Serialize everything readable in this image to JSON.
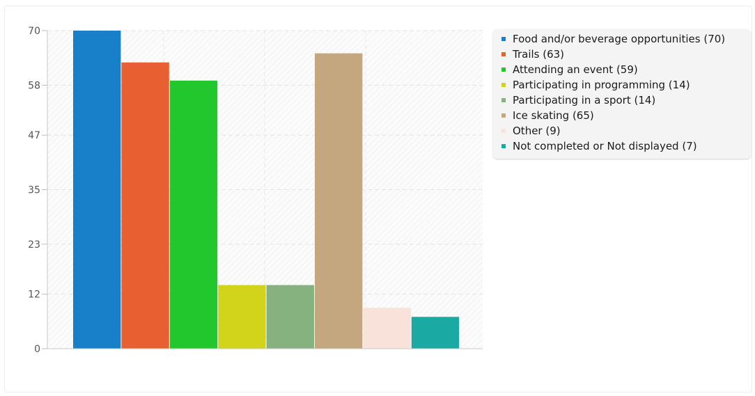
{
  "chart_data": {
    "type": "bar",
    "categories": [
      "Food and/or beverage opportunities",
      "Trails",
      "Attending an event",
      "Participating in programming",
      "Participating in a sport",
      "Ice skating",
      "Other",
      "Not completed or Not displayed"
    ],
    "values": [
      70,
      63,
      59,
      14,
      14,
      65,
      9,
      7
    ],
    "colors": [
      "#1780c9",
      "#e85f31",
      "#22c72e",
      "#d2d41c",
      "#86b27f",
      "#c5a77f",
      "#f9e2da",
      "#1aa9a3"
    ],
    "ylim": [
      0,
      70
    ],
    "yticks": [
      "0",
      "12",
      "23",
      "35",
      "47",
      "58",
      "70"
    ],
    "grid": true,
    "legend_position": "right",
    "legend": [
      "Food and/or beverage opportunities (70)",
      "Trails (63)",
      "Attending an event (59)",
      "Participating in programming (14)",
      "Participating in a sport (14)",
      "Ice skating (65)",
      "Other (9)",
      "Not completed or Not displayed (7)"
    ]
  }
}
